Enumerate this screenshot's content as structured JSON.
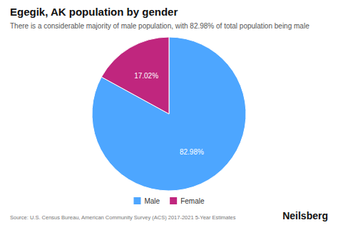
{
  "chart_data": {
    "type": "pie",
    "title": "Egegik, AK population by gender",
    "subtitle": "There is a considerable majority of male population, with 82.98% of total population being male",
    "categories": [
      "Male",
      "Female"
    ],
    "values": [
      82.98,
      17.02
    ],
    "value_labels": [
      "82.98%",
      "17.02%"
    ],
    "colors": [
      "#4DA6FF",
      "#C0267E"
    ],
    "data_labels": true,
    "legend": "bottom",
    "annotations": [
      "Source: U.S. Census Bureau, American Community Survey (ACS) 2017-2021 5-Year Estimates",
      "Neilsberg"
    ]
  }
}
